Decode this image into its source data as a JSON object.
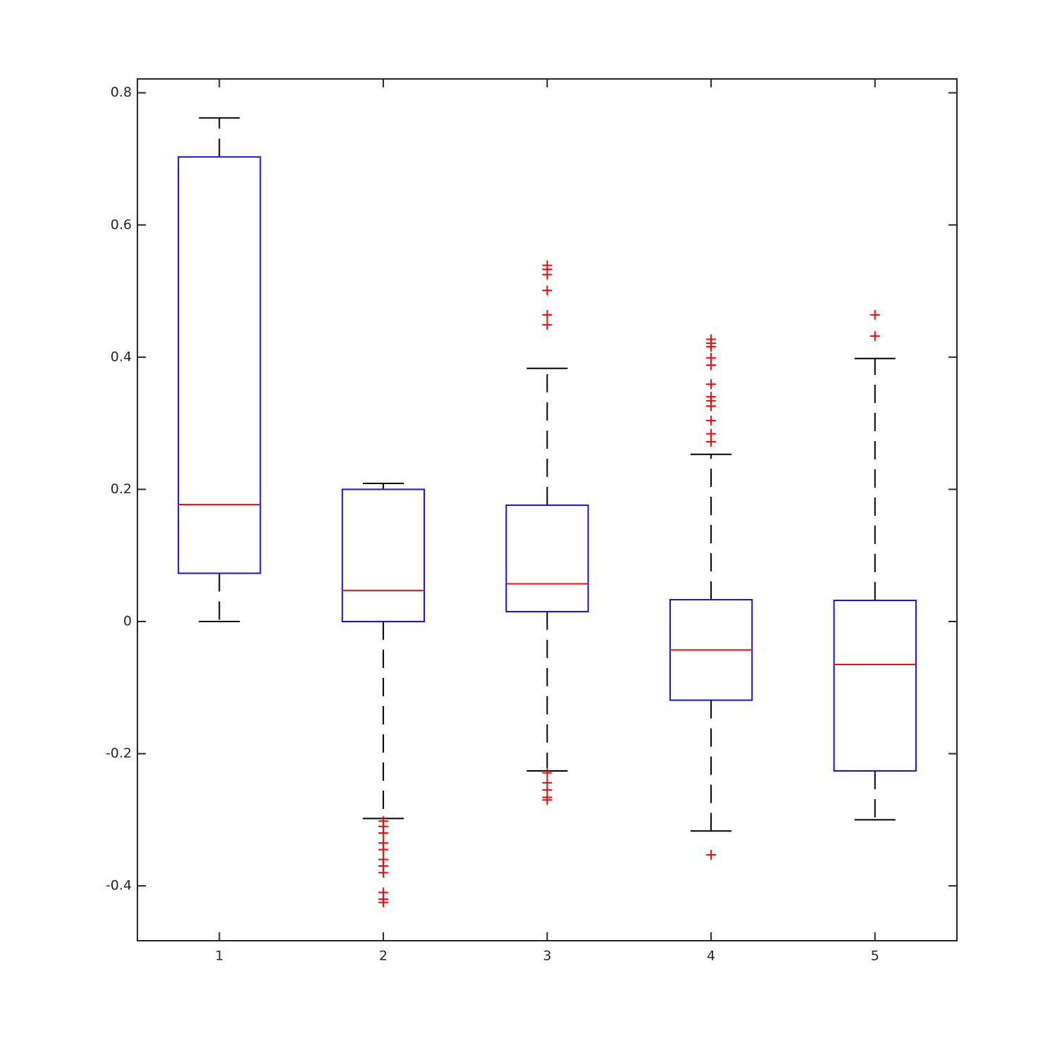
{
  "chart_data": {
    "type": "box",
    "categories": [
      1,
      2,
      3,
      4,
      5
    ],
    "xlim": [
      0.5,
      5.5
    ],
    "ylim": [
      -0.483,
      0.821
    ],
    "yticks": [
      -0.4,
      -0.2,
      0,
      0.2,
      0.4,
      0.6,
      0.8
    ],
    "box_color": "#1414d6",
    "median_color": "#e61414",
    "whisker_color": "#000000",
    "outlier_color": "#ff0000",
    "boxes": [
      {
        "whisker_high": 0.762,
        "q3": 0.703,
        "median": 0.177,
        "q1": 0.073,
        "whisker_low": 0,
        "outliers": []
      },
      {
        "whisker_high": 0.209,
        "q3": 0.2,
        "median": 0.047,
        "q1": 0,
        "whisker_low": -0.298,
        "outliers": [
          -0.302,
          -0.31,
          -0.32,
          -0.335,
          -0.345,
          -0.36,
          -0.37,
          -0.38,
          -0.41,
          -0.42,
          -0.425
        ]
      },
      {
        "whisker_high": 0.383,
        "q3": 0.176,
        "median": 0.057,
        "q1": 0.015,
        "whisker_low": -0.226,
        "outliers": [
          0.539,
          0.533,
          0.525,
          0.501,
          0.464,
          0.449,
          -0.229,
          -0.244,
          -0.255,
          -0.266,
          -0.27
        ]
      },
      {
        "whisker_high": 0.253,
        "q3": 0.033,
        "median": -0.043,
        "q1": -0.119,
        "whisker_low": -0.317,
        "outliers": [
          0.427,
          0.421,
          0.416,
          0.399,
          0.388,
          0.359,
          0.34,
          0.334,
          0.326,
          0.304,
          0.284,
          0.272,
          -0.353
        ]
      },
      {
        "whisker_high": 0.398,
        "q3": 0.032,
        "median": -0.065,
        "q1": -0.226,
        "whisker_low": -0.3,
        "outliers": [
          0.464,
          0.432
        ]
      }
    ]
  }
}
